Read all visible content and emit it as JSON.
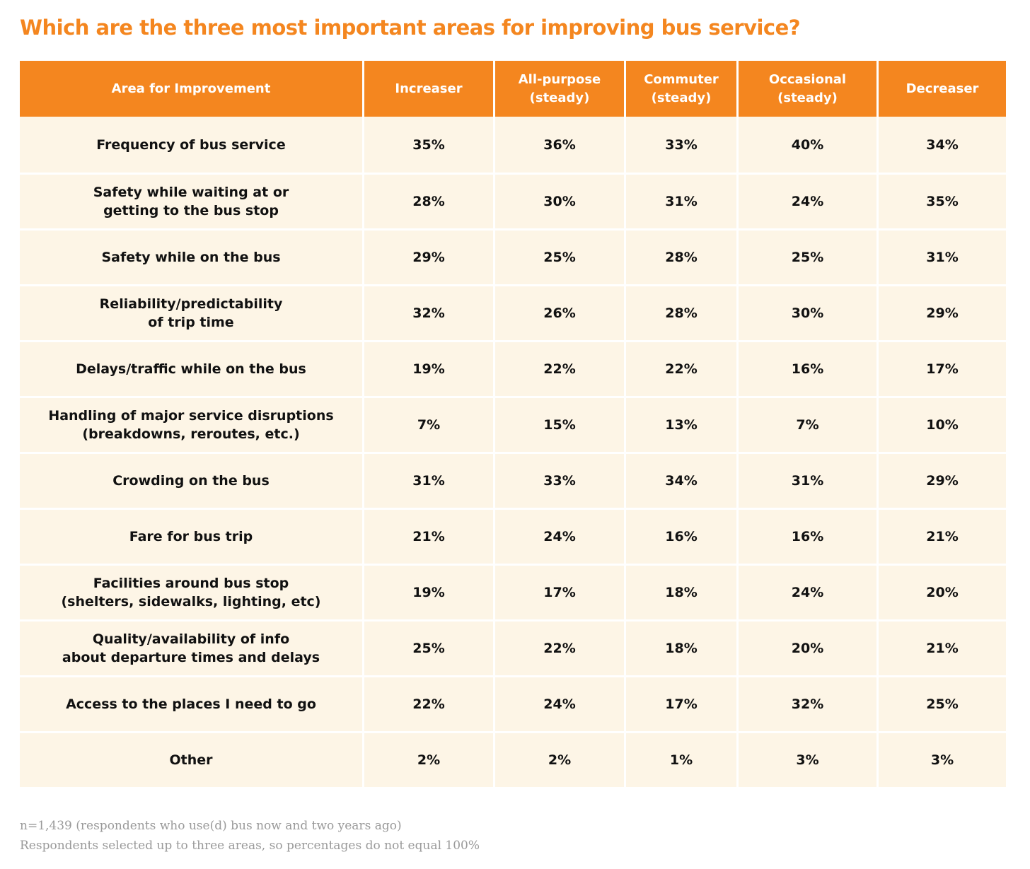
{
  "chart_data": {
    "type": "table",
    "title": "Which are the three most important areas for improving bus service?",
    "columns": [
      "Area for Improvement",
      "Increaser",
      "All-purpose\n(steady)",
      "Commuter\n(steady)",
      "Occasional\n(steady)",
      "Decreaser"
    ],
    "rows": [
      {
        "area": "Frequency of bus service",
        "values": [
          "35%",
          "36%",
          "33%",
          "40%",
          "34%"
        ]
      },
      {
        "area": "Safety while waiting at or\ngetting to the bus stop",
        "values": [
          "28%",
          "30%",
          "31%",
          "24%",
          "35%"
        ]
      },
      {
        "area": "Safety while on the bus",
        "values": [
          "29%",
          "25%",
          "28%",
          "25%",
          "31%"
        ]
      },
      {
        "area": "Reliability/predictability\nof trip time",
        "values": [
          "32%",
          "26%",
          "28%",
          "30%",
          "29%"
        ]
      },
      {
        "area": "Delays/traffic while on the bus",
        "values": [
          "19%",
          "22%",
          "22%",
          "16%",
          "17%"
        ]
      },
      {
        "area": "Handling of major service disruptions\n(breakdowns, reroutes, etc.)",
        "values": [
          "7%",
          "15%",
          "13%",
          "7%",
          "10%"
        ]
      },
      {
        "area": "Crowding on the bus",
        "values": [
          "31%",
          "33%",
          "34%",
          "31%",
          "29%"
        ]
      },
      {
        "area": "Fare for bus trip",
        "values": [
          "21%",
          "24%",
          "16%",
          "16%",
          "21%"
        ]
      },
      {
        "area": "Facilities around bus stop\n(shelters, sidewalks, lighting, etc)",
        "values": [
          "19%",
          "17%",
          "18%",
          "24%",
          "20%"
        ]
      },
      {
        "area": "Quality/availability of info\nabout departure times and delays",
        "values": [
          "25%",
          "22%",
          "18%",
          "20%",
          "21%"
        ]
      },
      {
        "area": "Access to the places I need to go",
        "values": [
          "22%",
          "24%",
          "17%",
          "32%",
          "25%"
        ]
      },
      {
        "area": "Other",
        "values": [
          "2%",
          "2%",
          "1%",
          "3%",
          "3%"
        ]
      }
    ],
    "footnotes": [
      "n=1,439 (respondents who use(d) bus now and two years ago)",
      "Respondents selected up to three areas, so percentages do not equal 100%"
    ]
  },
  "colors": {
    "accent": "#f4861f",
    "row_background": "#fdf5e6",
    "footnote_text": "#9a9a9a"
  }
}
